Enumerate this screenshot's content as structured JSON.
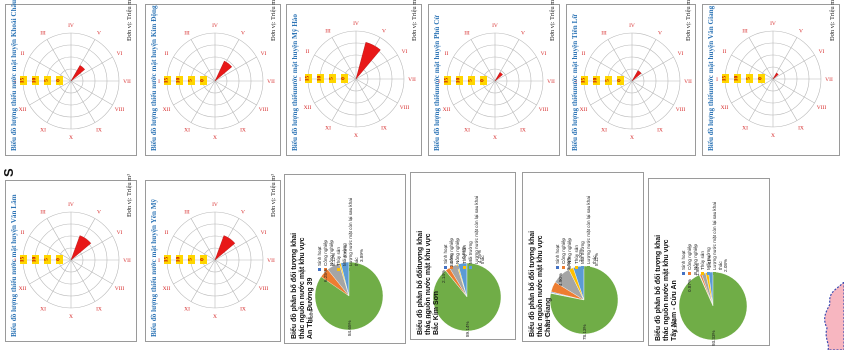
{
  "map": {
    "edge_label": "S",
    "radar_charts": [
      {
        "title": "Biểu đồ lượng thiếu nước mặt huyện Khoái Châu",
        "unit": "Đơn vị: Triệu m³",
        "ticks": [
          "15",
          "10",
          "5",
          "0"
        ],
        "months": [
          "I",
          "II",
          "III",
          "IV",
          "V",
          "VI",
          "VII",
          "VIII",
          "IX",
          "X",
          "XI",
          "XII"
        ]
      },
      {
        "title": "Biểu đồ lượng thiếu nước mặt huyện Kim Động",
        "unit": "Đơn vị: Triệu m³",
        "ticks": [
          "15",
          "10",
          "5",
          "0"
        ],
        "months": [
          "I",
          "II",
          "III",
          "IV",
          "V",
          "VI",
          "VII",
          "VIII",
          "IX",
          "X",
          "XI",
          "XII"
        ]
      },
      {
        "title": "Biểu đồ lượng thiếunước mặt huyện Mỹ Hào",
        "unit": "Đơn vị: Triệu m³",
        "ticks": [
          "15",
          "10",
          "5",
          "0"
        ],
        "months": [
          "I",
          "II",
          "III",
          "IV",
          "V",
          "VI",
          "VII",
          "VIII",
          "IX",
          "X",
          "XI",
          "XII"
        ]
      },
      {
        "title": "Biểu đồ lượng thiếunước mặt huyện Phù Cừ",
        "unit": "Đơn vị: Triệu m³",
        "ticks": [
          "15",
          "10",
          "5",
          "0"
        ],
        "months": [
          "I",
          "II",
          "III",
          "IV",
          "V",
          "VI",
          "VII",
          "VIII",
          "IX",
          "X",
          "XI",
          "XII"
        ]
      },
      {
        "title": "Biểu đồ lượng thiếunước mặt huyện Tiên Lữ",
        "unit": "Đơn vị: Triệu m³",
        "ticks": [
          "15",
          "10",
          "5",
          "0"
        ],
        "months": [
          "I",
          "II",
          "III",
          "IV",
          "V",
          "VI",
          "VII",
          "VIII",
          "IX",
          "X",
          "XI",
          "XII"
        ]
      },
      {
        "title": "Biểu đồ lượng thiếunước mặt huyện Văn Giang",
        "unit": "Đơn vị: Triệu m³",
        "ticks": [
          "15",
          "10",
          "5",
          "0"
        ],
        "months": [
          "I",
          "II",
          "III",
          "IV",
          "V",
          "VI",
          "VII",
          "VIII",
          "IX",
          "X",
          "XI",
          "XII"
        ]
      },
      {
        "title": "Biểu đồ lượng thiếu nước mặt huyện Văn Lâm",
        "unit": "Đơn vị: Triệu m³",
        "ticks": [
          "15",
          "10",
          "5",
          "0"
        ],
        "months": [
          "I",
          "II",
          "III",
          "IV",
          "V",
          "VI",
          "VII",
          "VIII",
          "IX",
          "X",
          "XI",
          "XII"
        ]
      },
      {
        "title": "Biểu đồ lượng thiếu nước mặt huyện Yên Mỹ",
        "unit": "Đơn vị: Triệu m³",
        "ticks": [
          "15",
          "10",
          "5",
          "0"
        ],
        "months": [
          "I",
          "II",
          "III",
          "IV",
          "V",
          "VI",
          "VII",
          "VIII",
          "IX",
          "X",
          "XI",
          "XII"
        ]
      }
    ],
    "pie_charts": [
      {
        "title": "Biểu đồ phân bố đối tượng khai thác nguồn nước mặt khu vực An Thi - Đường 39",
        "legend": [
          "Sinh hoạt",
          "Công nghiệp",
          "Nông nghiệp",
          "Thủy sản",
          "Môi trường",
          "Lượng nước mặt còn lại sau khai thác"
        ],
        "labels": [
          "0.08%",
          "6.25%",
          "6.12%",
          "0.75%",
          "3.89%",
          "84.65%"
        ]
      },
      {
        "title": "Biểu đồ phân bố đốitượng khai thác nguồn nước mặt khu vực Bắc Kim Sơn",
        "legend": [
          "Sinh hoạt",
          "Công nghiệp",
          "Nông nghiệp",
          "Thủy sản",
          "Môi trường",
          "Lượng nước mặt còn lại sau khai thác"
        ],
        "labels": [
          "0.11%",
          "2.14%",
          "3.69%",
          "0.66%",
          "4.25%",
          "89.14%"
        ]
      },
      {
        "title": "Biểu đồ phân bố đối tượng khai thác nguồn nước mặt khu vực Châu Giang",
        "legend": [
          "Sinh hoạt",
          "Công nghiệp",
          "Nông nghiệp",
          "Thủy sản",
          "Môi trường",
          "Lượng nước mặt còn lại sau khai thác"
        ],
        "labels": [
          "0.44%",
          "4.90%",
          "8.86%",
          "2.20%",
          "5.12%",
          "78.13%"
        ]
      },
      {
        "title": "Biểu đồ phân bố đối tượng khai thác nguồn nước mặt khu vực Tây Nam - Cửu An",
        "legend": [
          "Sinh hoạt",
          "Công nghiệp",
          "Nông nghiệp",
          "Thủy sản",
          "Môi trường",
          "Lượng nước mặt còn lại sau khai thác"
        ],
        "labels": [
          "0.18%",
          "0.87%",
          "1.98%",
          "1.41%",
          "2.08%",
          "93.33%"
        ]
      }
    ]
  },
  "colors": {
    "sector": "#e81818",
    "axis_red": "#d62a2a",
    "tick_yellow": "#ffd600",
    "title_blue": "#2e75b6",
    "pie": [
      "#4472c4",
      "#ed7d31",
      "#a5a5a5",
      "#ffc000",
      "#5b9bd5",
      "#70ad47"
    ],
    "map_area": "#f7b6c0",
    "map_border": "#3a4bb0"
  }
}
